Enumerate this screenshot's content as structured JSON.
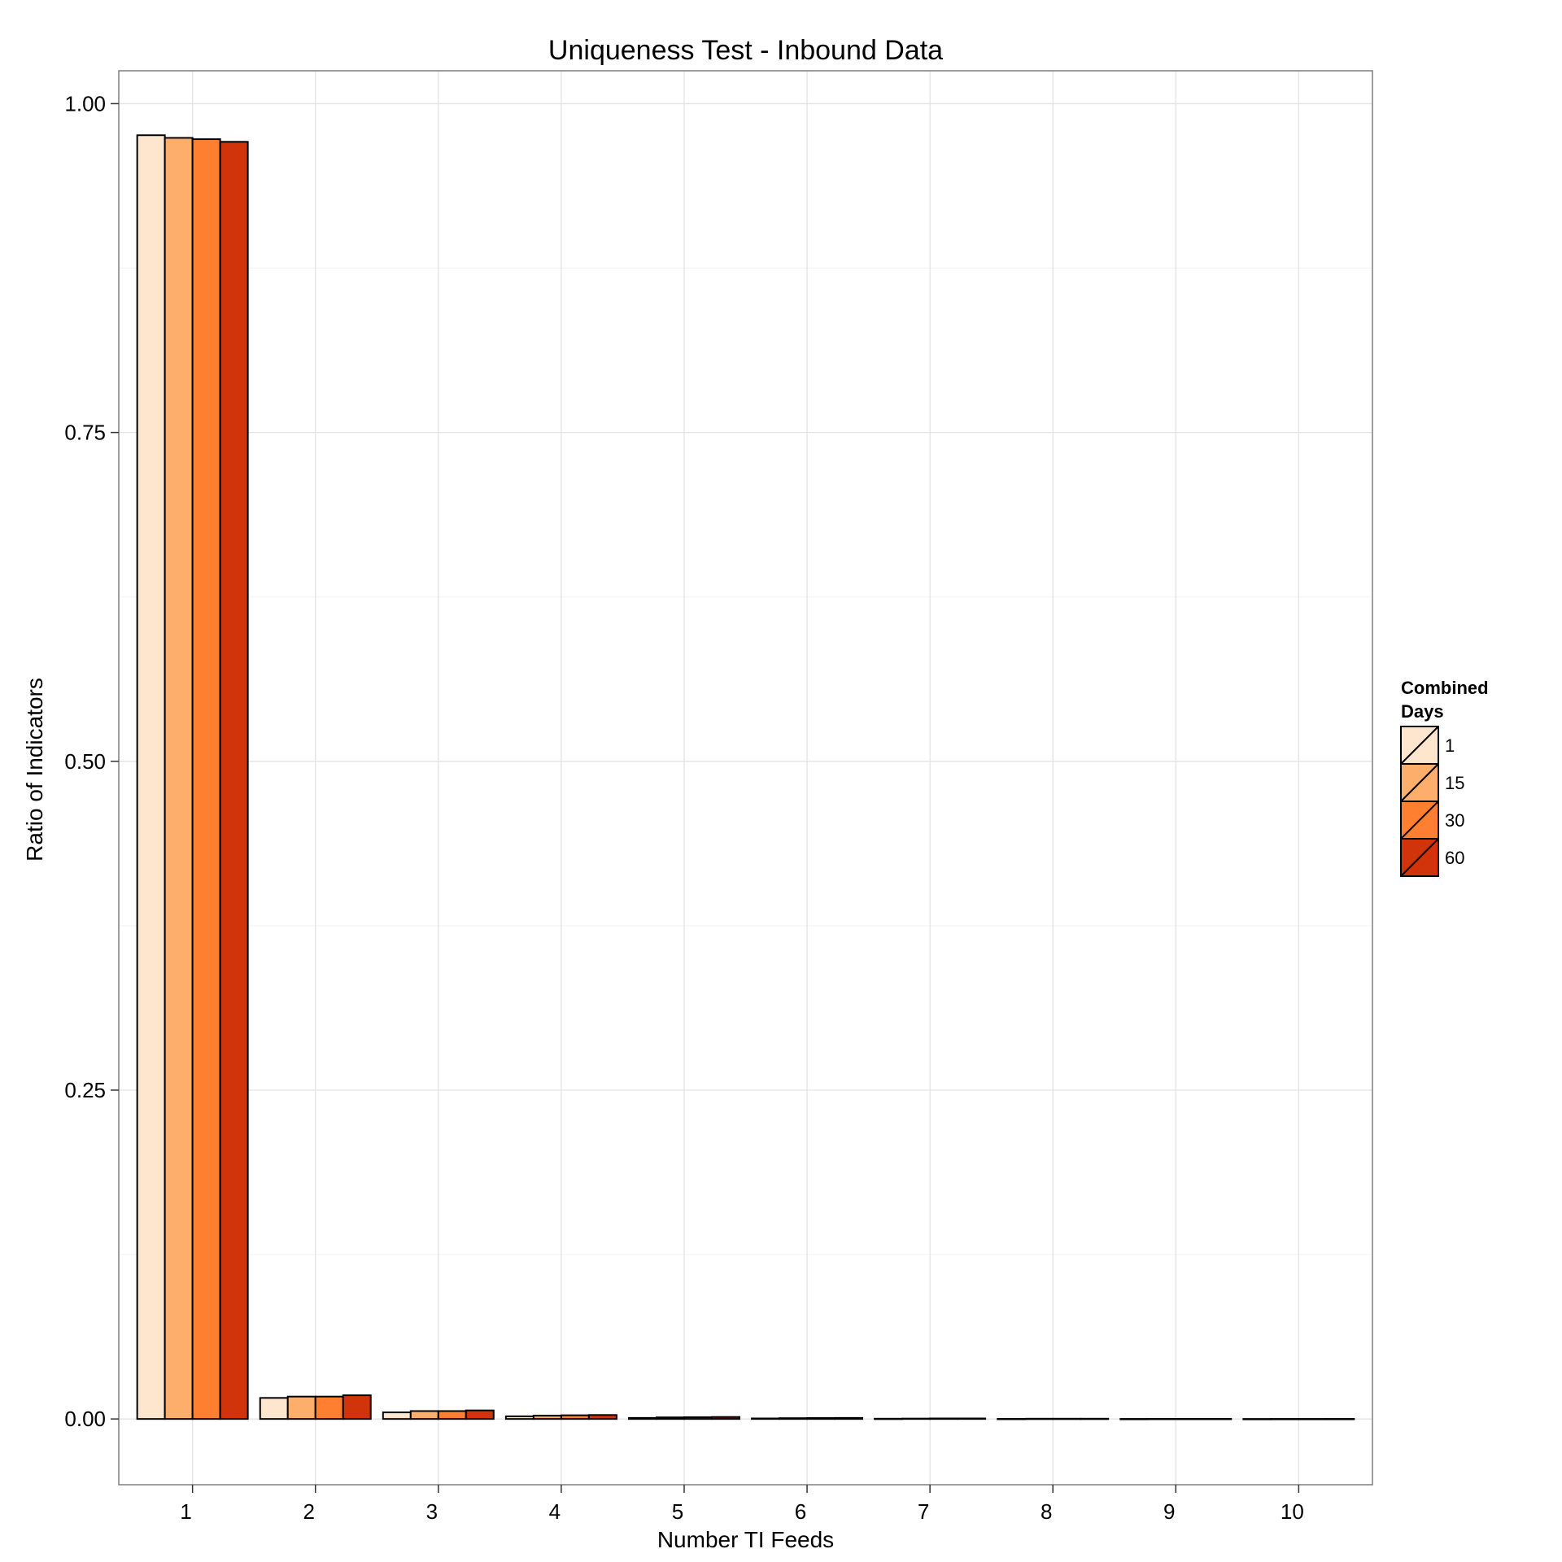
{
  "chart_data": {
    "type": "bar",
    "title": "Uniqueness Test - Inbound Data",
    "xlabel": "Number TI Feeds",
    "ylabel": "Ratio of Indicators",
    "categories": [
      "1",
      "2",
      "3",
      "4",
      "5",
      "6",
      "7",
      "8",
      "9",
      "10"
    ],
    "y_ticks": [
      "0.00",
      "0.25",
      "0.50",
      "0.75",
      "1.00"
    ],
    "ylim": [
      -0.05,
      1.025
    ],
    "grid": true,
    "legend": {
      "title_lines": [
        "Combined",
        "Days"
      ],
      "position": "right"
    },
    "series": [
      {
        "name": "1",
        "color": "#FEE6CE",
        "values": [
          0.976,
          0.016,
          0.005,
          0.002,
          0.0008,
          0.0004,
          0.0002,
          0.0001,
          5e-05,
          2e-05
        ]
      },
      {
        "name": "15",
        "color": "#FDAE6B",
        "values": [
          0.974,
          0.017,
          0.006,
          0.0025,
          0.0012,
          0.0006,
          0.0003,
          0.0002,
          0.0001,
          5e-05
        ]
      },
      {
        "name": "30",
        "color": "#FD7F2F",
        "values": [
          0.973,
          0.017,
          0.006,
          0.0028,
          0.0013,
          0.0007,
          0.0004,
          0.0002,
          0.0001,
          5e-05
        ]
      },
      {
        "name": "60",
        "color": "#D1330A",
        "values": [
          0.971,
          0.018,
          0.0065,
          0.003,
          0.0015,
          0.0008,
          0.0004,
          0.0002,
          0.0001,
          6e-05
        ]
      }
    ]
  }
}
